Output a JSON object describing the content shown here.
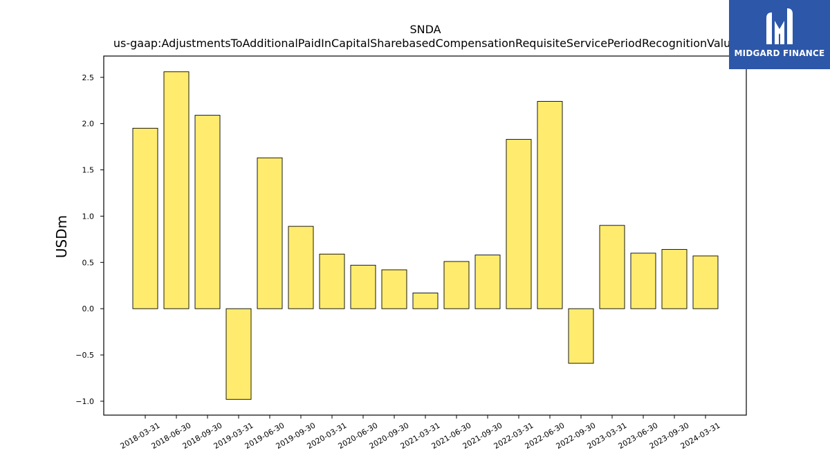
{
  "brand": {
    "name": "MIDGARD FINANCE",
    "logo_bg": "#2d57a8",
    "logo_icon": "midgard-m-logo"
  },
  "colors": {
    "bar_fill": "#ffec6e",
    "bar_stroke": "#000000"
  },
  "chart_data": {
    "type": "bar",
    "title": "SNDA",
    "subtitle": "us-gaap:AdjustmentsToAdditionalPaidInCapitalSharebasedCompensationRequisiteServicePeriodRecognitionValue",
    "xlabel": "",
    "ylabel": "USDm",
    "ylim": [
      -1.15,
      2.73
    ],
    "yticks": [
      -1.0,
      -0.5,
      0.0,
      0.5,
      1.0,
      1.5,
      2.0,
      2.5
    ],
    "ytick_labels": [
      "−1.0",
      "−0.5",
      "0.0",
      "0.5",
      "1.0",
      "1.5",
      "2.0",
      "2.5"
    ],
    "grid": false,
    "legend": "none",
    "categories": [
      "2018-03-31",
      "2018-06-30",
      "2018-09-30",
      "2019-03-31",
      "2019-06-30",
      "2019-09-30",
      "2020-03-31",
      "2020-06-30",
      "2020-09-30",
      "2021-03-31",
      "2021-06-30",
      "2021-09-30",
      "2022-03-31",
      "2022-06-30",
      "2022-09-30",
      "2023-03-31",
      "2023-06-30",
      "2023-09-30",
      "2024-03-31"
    ],
    "values": [
      1.95,
      2.56,
      2.09,
      -0.98,
      1.63,
      0.89,
      0.59,
      0.47,
      0.42,
      0.17,
      0.51,
      0.58,
      1.83,
      2.24,
      -0.59,
      0.9,
      0.6,
      0.64,
      0.57
    ]
  }
}
